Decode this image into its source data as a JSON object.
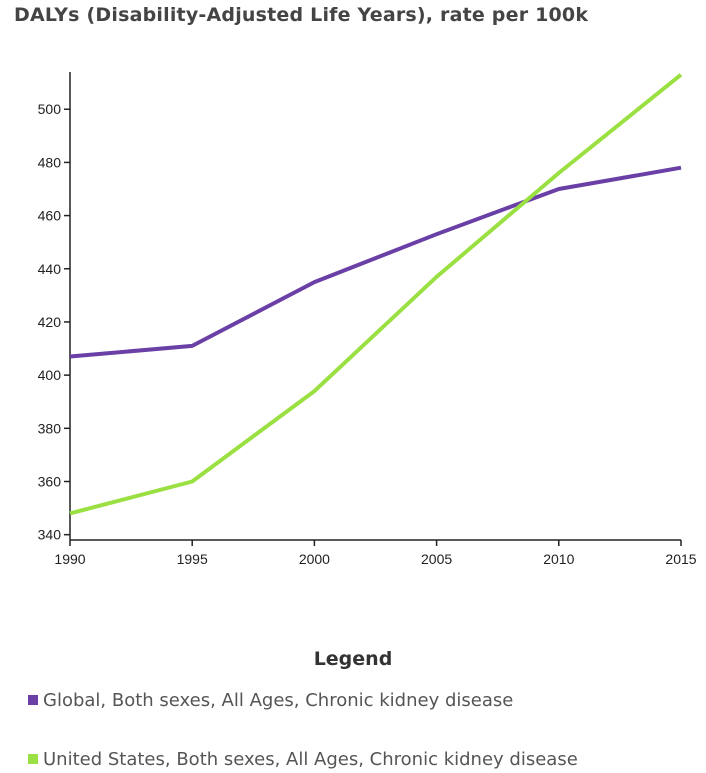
{
  "chart_data": {
    "type": "line",
    "title": "DALYs (Disability-Adjusted Life Years), rate per 100k",
    "xlabel": "",
    "ylabel": "",
    "x": [
      1990,
      1995,
      2000,
      2005,
      2010,
      2015
    ],
    "xticks": [
      "1990",
      "1995",
      "2000",
      "2005",
      "2010",
      "2015"
    ],
    "yticks": [
      "340",
      "360",
      "380",
      "400",
      "420",
      "440",
      "460",
      "480",
      "500"
    ],
    "ylim": [
      338,
      514
    ],
    "grid": false,
    "legend_title": "Legend",
    "legend_position": "bottom",
    "series": [
      {
        "name": "Global, Both sexes, All Ages, Chronic kidney disease",
        "color": "#6a3fa6",
        "values": [
          407,
          411,
          435,
          453,
          470,
          478
        ]
      },
      {
        "name": "United States, Both sexes, All Ages, Chronic kidney disease",
        "color": "#9be042",
        "values": [
          348,
          360,
          394,
          437,
          476,
          513
        ]
      }
    ]
  }
}
